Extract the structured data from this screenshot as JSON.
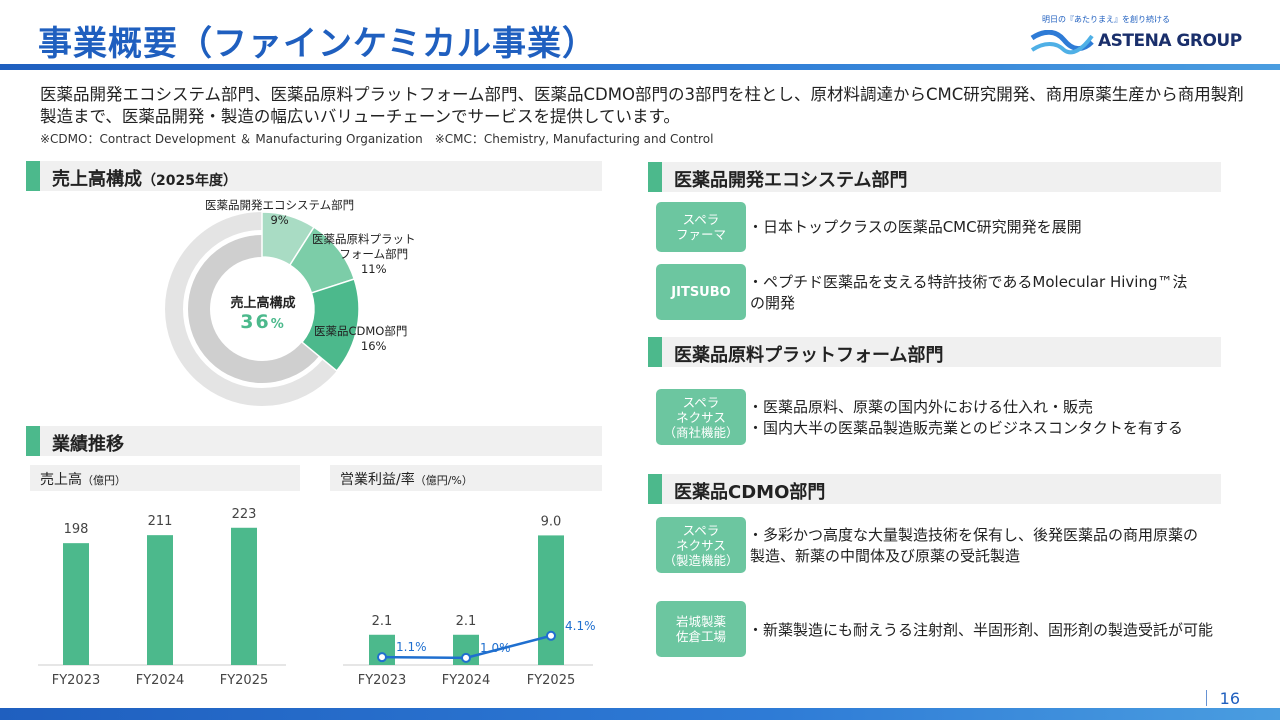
{
  "header": {
    "title": "事業概要（ファインケミカル事業）",
    "logo_tagline": "明日の『あたりまえ』を創り続ける",
    "logo_text": "ASTENA GROUP"
  },
  "intro": {
    "lead": "医薬品開発エコシステム部門、医薬品原料プラットフォーム部門、医薬品CDMO部門の3部門を柱とし、原材料調達からCMC研究開発、商用原薬生産から商用製剤製造まで、医薬品開発・製造の幅広いバリューチェーンでサービスを提供しています。",
    "note": "※CDMO：Contract Development ＆ Manufacturing Organization　※CMC：Chemistry, Manufacturing and Control"
  },
  "sales_mix": {
    "heading": "売上高構成",
    "heading_sub": "（2025年度）",
    "center_label": "売上高構成",
    "center_value": "36",
    "center_unit": "%",
    "segments": [
      {
        "label_1": "医薬品開発エコシステム部門",
        "label_2": "",
        "value": "9%"
      },
      {
        "label_1": "医薬品原料プラット",
        "label_2": "フォーム部門",
        "value": "11%"
      },
      {
        "label_1": "医薬品CDMO部門",
        "label_2": "",
        "value": "16%"
      }
    ]
  },
  "performance": {
    "heading": "業績推移",
    "sales_title": "売上高",
    "sales_unit": "（億円）",
    "profit_title": "営業利益/率",
    "profit_unit": "（億円/%）"
  },
  "chart_data": [
    {
      "type": "bar",
      "title": "売上高（億円）",
      "categories": [
        "FY2023",
        "FY2024",
        "FY2025"
      ],
      "values": [
        198,
        211,
        223
      ],
      "value_labels": [
        "198",
        "211",
        "223"
      ],
      "ylim": [
        0,
        260
      ]
    },
    {
      "type": "bar+line",
      "title": "営業利益/率（億円/%）",
      "categories": [
        "FY2023",
        "FY2024",
        "FY2025"
      ],
      "series": [
        {
          "name": "営業利益",
          "type": "bar",
          "values": [
            2.1,
            2.1,
            9.0
          ],
          "value_labels": [
            "2.1",
            "2.1",
            "9.0"
          ]
        },
        {
          "name": "営業利益率",
          "type": "line",
          "values": [
            1.1,
            1.0,
            4.1
          ],
          "value_labels": [
            "1.1%",
            "1.0%",
            "4.1%"
          ]
        }
      ],
      "ylim": [
        0,
        10
      ],
      "rate_lim": [
        0,
        20
      ]
    }
  ],
  "segments": [
    {
      "heading": "医薬品開発エコシステム部門",
      "items": [
        {
          "badge": [
            "スペラ",
            "ファーマ"
          ],
          "lines": [
            "・日本トップクラスの医薬品CMC研究開発を展開"
          ]
        },
        {
          "badge": [
            "JITSUBO"
          ],
          "lines": [
            "・ペプチド医薬品を支える特許技術であるMolecular Hiving™法",
            "の開発"
          ]
        }
      ]
    },
    {
      "heading": "医薬品原料プラットフォーム部門",
      "items": [
        {
          "badge": [
            "スペラ",
            "ネクサス",
            "（商社機能）"
          ],
          "lines": [
            "・医薬品原料、原薬の国内外における仕入れ・販売",
            "・国内大半の医薬品製造販売業とのビジネスコンタクトを有する"
          ]
        }
      ]
    },
    {
      "heading": "医薬品CDMO部門",
      "items": [
        {
          "badge": [
            "スペラ",
            "ネクサス",
            "（製造機能）"
          ],
          "lines": [
            "・多彩かつ高度な大量製造技術を保有し、後発医薬品の商用原薬の",
            "製造、新薬の中間体及び原薬の受託製造"
          ]
        },
        {
          "badge": [
            "岩城製薬",
            "佐倉工場"
          ],
          "lines": [
            "・新薬製造にも耐えうる注射剤、半固形剤、固形剤の製造受託が可能"
          ]
        }
      ]
    }
  ],
  "footer": {
    "page_number": "｜ 16"
  },
  "colors": {
    "brand_blue": "#1f5fbf",
    "accent_green": "#4cb98c",
    "badge_green": "#6cc6a0",
    "line_blue": "#1f6fcf"
  }
}
